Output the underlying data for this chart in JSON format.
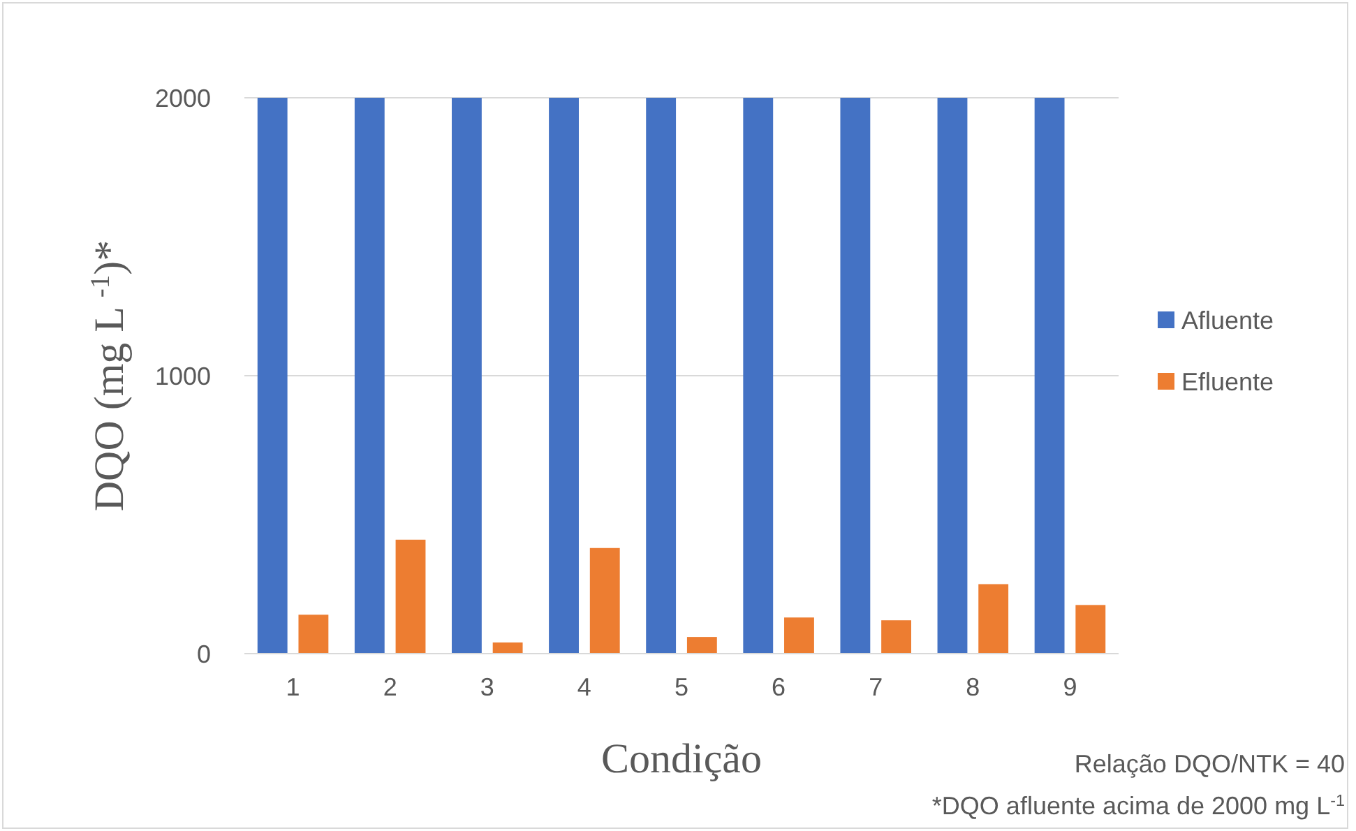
{
  "chart_data": {
    "type": "bar",
    "xlabel": "Condição",
    "ylabel": "DQO (mg L $^{-1}$)*",
    "categories": [
      "1",
      "2",
      "3",
      "4",
      "5",
      "6",
      "7",
      "8",
      "9"
    ],
    "series": [
      {
        "name": "Afluente",
        "color": "#4472c4",
        "values": [
          2000,
          2000,
          2000,
          2000,
          2000,
          2000,
          2000,
          2000,
          2000
        ]
      },
      {
        "name": "Efluente",
        "color": "#ed7d31",
        "values": [
          140,
          410,
          40,
          380,
          60,
          130,
          120,
          250,
          175
        ]
      }
    ],
    "ylim": [
      0,
      2000
    ],
    "yticks": [
      0,
      1000,
      2000
    ],
    "grid": "y",
    "legend": "right",
    "annotations": [
      "Relação DQO/NTK = 40",
      "*DQO afluente acima de 2000 mg L$^{-1}$"
    ]
  }
}
